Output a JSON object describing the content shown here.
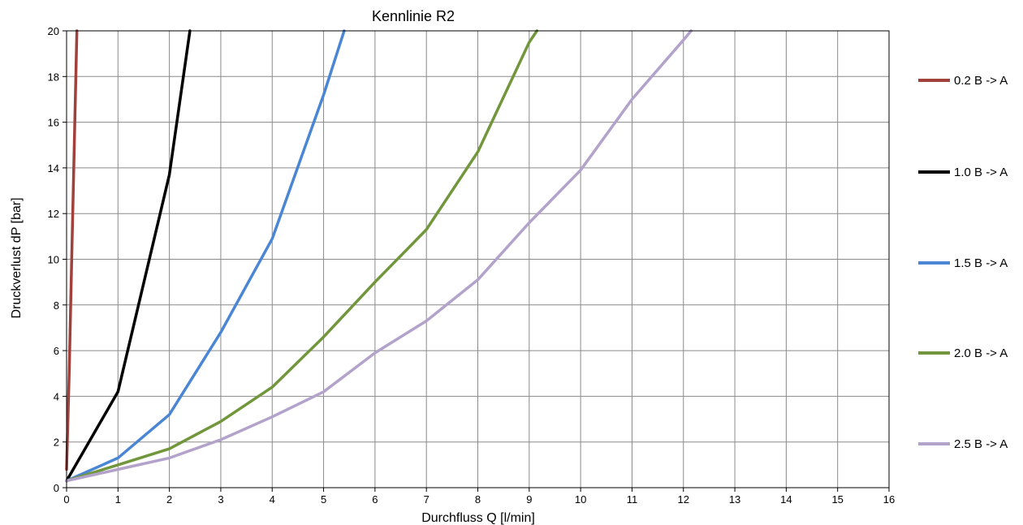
{
  "chart_data": {
    "type": "line",
    "title": "Kennlinie R2",
    "xlabel": "Durchfluss Q [l/min]",
    "ylabel": "Druckverlust dP [bar]",
    "xlim": [
      0,
      16
    ],
    "ylim": [
      0,
      20
    ],
    "xticks": [
      0,
      1,
      2,
      3,
      4,
      5,
      6,
      7,
      8,
      9,
      10,
      11,
      12,
      13,
      14,
      15,
      16
    ],
    "yticks": [
      0,
      2,
      4,
      6,
      8,
      10,
      12,
      14,
      16,
      18,
      20
    ],
    "grid": true,
    "legend_position": "right",
    "series": [
      {
        "name": "0.2  B -> A",
        "color": "#a0413b",
        "points": [
          [
            0.0,
            0.8
          ],
          [
            0.05,
            5.0
          ],
          [
            0.1,
            10.0
          ],
          [
            0.15,
            15.0
          ],
          [
            0.2,
            20.0
          ]
        ]
      },
      {
        "name": "1.0  B -> A",
        "color": "#000000",
        "points": [
          [
            0.0,
            0.3
          ],
          [
            1.0,
            4.2
          ],
          [
            2.0,
            13.7
          ],
          [
            2.4,
            20.0
          ]
        ]
      },
      {
        "name": "1.5  B -> A",
        "color": "#4a86d4",
        "points": [
          [
            0.0,
            0.3
          ],
          [
            1.0,
            1.3
          ],
          [
            2.0,
            3.2
          ],
          [
            3.0,
            6.8
          ],
          [
            4.0,
            10.9
          ],
          [
            5.0,
            17.2
          ],
          [
            5.4,
            20.0
          ]
        ]
      },
      {
        "name": "2.0  B -> A",
        "color": "#71963c",
        "points": [
          [
            0.0,
            0.3
          ],
          [
            1.0,
            1.0
          ],
          [
            2.0,
            1.7
          ],
          [
            3.0,
            2.9
          ],
          [
            4.0,
            4.4
          ],
          [
            5.0,
            6.6
          ],
          [
            6.0,
            9.0
          ],
          [
            7.0,
            11.3
          ],
          [
            8.0,
            14.7
          ],
          [
            9.0,
            19.5
          ],
          [
            9.15,
            20.0
          ]
        ]
      },
      {
        "name": "2.5  B -> A",
        "color": "#b3a2c9",
        "points": [
          [
            0.0,
            0.3
          ],
          [
            1.0,
            0.8
          ],
          [
            2.0,
            1.3
          ],
          [
            3.0,
            2.1
          ],
          [
            4.0,
            3.1
          ],
          [
            5.0,
            4.2
          ],
          [
            6.0,
            5.9
          ],
          [
            7.0,
            7.3
          ],
          [
            8.0,
            9.1
          ],
          [
            9.0,
            11.6
          ],
          [
            10.0,
            13.9
          ],
          [
            11.0,
            17.0
          ],
          [
            12.0,
            19.6
          ],
          [
            12.15,
            20.0
          ]
        ]
      }
    ]
  }
}
